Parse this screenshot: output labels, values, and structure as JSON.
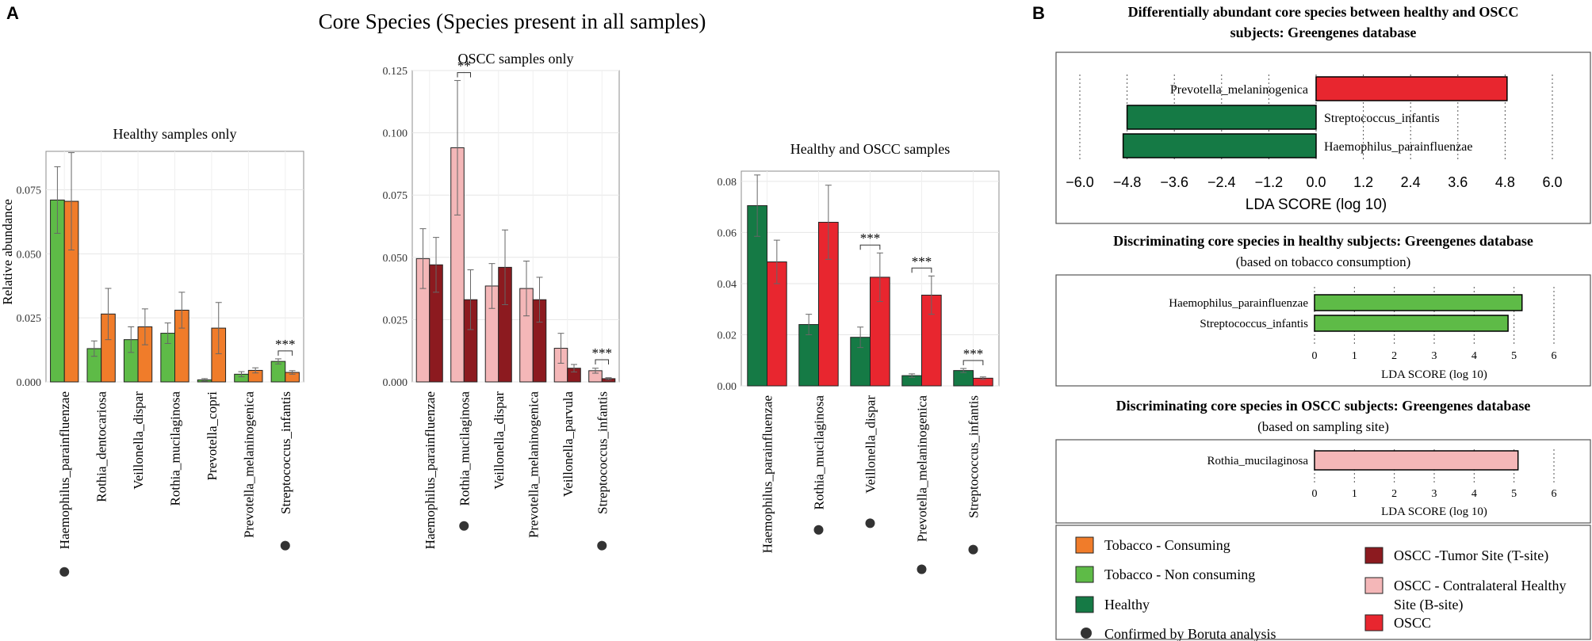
{
  "panel_labels": {
    "a": "A",
    "b": "B"
  },
  "core_title": "Core Species (Species present in all samples)",
  "y_axis_label": "Relative abundance",
  "significance": "***",
  "significance_2": "**",
  "colors": {
    "tobacco_consuming": "#f07c2a",
    "tobacco_non_consuming": "#5ebb47",
    "healthy": "#157a45",
    "oscc": "#e8262f",
    "oscc_t_site": "#8c1a1f",
    "oscc_b_site": "#f4b7b8",
    "boruta": "#333333"
  },
  "chart_data": [
    {
      "type": "bar",
      "title": "Healthy samples only",
      "ylabel": "Relative abundance",
      "ylim": [
        0,
        0.09
      ],
      "yticks": [
        "0.000",
        "0.025",
        "0.050",
        "0.075"
      ],
      "categories": [
        "Haemophilus_parainfluenzae",
        "Rothia_dentocariosa",
        "Veillonella_dispar",
        "Rothia_mucilaginosa",
        "Prevotella_copri",
        "Prevotella_melaninogenica",
        "Streptococcus_infantis"
      ],
      "boruta": [
        true,
        false,
        false,
        false,
        false,
        false,
        true
      ],
      "series": [
        {
          "name": "Tobacco - Non consuming",
          "color": "#5ebb47",
          "values": [
            0.071,
            0.013,
            0.0165,
            0.019,
            0.0008,
            0.003,
            0.008
          ],
          "errors": [
            0.013,
            0.003,
            0.005,
            0.004,
            0.0005,
            0.001,
            0.001
          ]
        },
        {
          "name": "Tobacco - Consuming",
          "color": "#f07c2a",
          "values": [
            0.0705,
            0.0265,
            0.0215,
            0.028,
            0.021,
            0.0045,
            0.0037
          ],
          "errors": [
            0.019,
            0.01,
            0.007,
            0.007,
            0.01,
            0.001,
            0.0007
          ]
        }
      ],
      "annotations": [
        {
          "category": 6,
          "text": "***"
        }
      ]
    },
    {
      "type": "bar",
      "title": "OSCC samples only",
      "ylim": [
        0,
        0.125
      ],
      "yticks": [
        "0.000",
        "0.025",
        "0.050",
        "0.075",
        "0.100",
        "0.125"
      ],
      "categories": [
        "Haemophilus_parainfluenzae",
        "Rothia_mucilaginosa",
        "Veillonella_dispar",
        "Prevotella_melaninogenica",
        "Veillonella_parvula",
        "Streptococcus_infantis"
      ],
      "boruta": [
        false,
        true,
        false,
        false,
        false,
        true
      ],
      "series": [
        {
          "name": "OSCC - Contralateral Healthy Site (B-site)",
          "color": "#f4b7b8",
          "values": [
            0.0495,
            0.094,
            0.0385,
            0.0375,
            0.0135,
            0.0045
          ],
          "errors": [
            0.012,
            0.027,
            0.009,
            0.011,
            0.006,
            0.001
          ]
        },
        {
          "name": "OSCC -Tumor Site (T-site)",
          "color": "#8c1a1f",
          "values": [
            0.047,
            0.033,
            0.046,
            0.033,
            0.0055,
            0.0013
          ],
          "errors": [
            0.011,
            0.012,
            0.015,
            0.009,
            0.0015,
            0.0004
          ]
        }
      ],
      "annotations": [
        {
          "category": 1,
          "text": "**"
        },
        {
          "category": 5,
          "text": "***"
        }
      ]
    },
    {
      "type": "bar",
      "title": "Healthy and OSCC samples",
      "ylim": [
        0,
        0.084
      ],
      "yticks": [
        "0.00",
        "0.02",
        "0.04",
        "0.06",
        "0.08"
      ],
      "categories": [
        "Haemophilus_parainfluenzae",
        "Rothia_mucilaginosa",
        "Veillonella_dispar",
        "Prevotella_melaninogenica",
        "Streptococcus_infantis"
      ],
      "boruta": [
        false,
        true,
        true,
        true,
        true
      ],
      "series": [
        {
          "name": "Healthy",
          "color": "#157a45",
          "values": [
            0.0705,
            0.024,
            0.019,
            0.004,
            0.006
          ],
          "errors": [
            0.012,
            0.004,
            0.004,
            0.0007,
            0.0008
          ]
        },
        {
          "name": "OSCC",
          "color": "#e8262f",
          "values": [
            0.0485,
            0.064,
            0.0425,
            0.0355,
            0.003
          ],
          "errors": [
            0.0085,
            0.0145,
            0.0095,
            0.0075,
            0.0005
          ]
        }
      ],
      "annotations": [
        {
          "category": 2,
          "text": "***"
        },
        {
          "category": 3,
          "text": "***"
        },
        {
          "category": 4,
          "text": "***"
        }
      ]
    },
    {
      "type": "bar",
      "orientation": "horizontal",
      "title": "Differentially abundant core species between healthy and OSCC subjects: Greengenes database",
      "xlabel": "LDA SCORE (log 10)",
      "xlim": [
        -6.0,
        6.0
      ],
      "xticks": [
        "−6.0",
        "−4.8",
        "−3.6",
        "−2.4",
        "−1.2",
        "0.0",
        "1.2",
        "2.4",
        "3.6",
        "4.8",
        "6.0"
      ],
      "categories": [
        "Prevotella_melaninogenica",
        "Streptococcus_infantis",
        "Haemophilus_parainfluenzae"
      ],
      "values": [
        4.85,
        -4.8,
        -4.9
      ],
      "colors": [
        "#e8262f",
        "#157a45",
        "#157a45"
      ]
    },
    {
      "type": "bar",
      "orientation": "horizontal",
      "title": "Discriminating core species in healthy subjects: Greengenes database",
      "subtitle": "(based on tobacco consumption)",
      "xlabel": "LDA SCORE (log 10)",
      "xlim": [
        0,
        6
      ],
      "xticks": [
        "0",
        "1",
        "2",
        "3",
        "4",
        "5",
        "6"
      ],
      "categories": [
        "Haemophilus_parainfluenzae",
        "Streptococcus_infantis"
      ],
      "values": [
        5.2,
        4.85
      ],
      "colors": [
        "#5ebb47",
        "#5ebb47"
      ]
    },
    {
      "type": "bar",
      "orientation": "horizontal",
      "title": "Discriminating core species in OSCC subjects: Greengenes database",
      "subtitle": "(based on sampling site)",
      "xlabel": "LDA SCORE (log 10)",
      "xlim": [
        0,
        6
      ],
      "xticks": [
        "0",
        "1",
        "2",
        "3",
        "4",
        "5",
        "6"
      ],
      "categories": [
        "Rothia_mucilaginosa"
      ],
      "values": [
        5.1
      ],
      "colors": [
        "#f4b7b8"
      ]
    }
  ],
  "legend": {
    "items": [
      {
        "label": "Tobacco - Consuming",
        "color": "#f07c2a"
      },
      {
        "label": "Tobacco - Non consuming",
        "color": "#5ebb47"
      },
      {
        "label": "Healthy",
        "color": "#157a45"
      },
      {
        "label": "Confirmed by Boruta analysis",
        "color": "#333333",
        "marker": "dot"
      },
      {
        "label": "OSCC -Tumor Site (T-site)",
        "color": "#8c1a1f"
      },
      {
        "label": "OSCC - Contralateral Healthy",
        "label2": "Site (B-site)",
        "color": "#f4b7b8"
      },
      {
        "label": "OSCC",
        "color": "#e8262f"
      }
    ]
  }
}
